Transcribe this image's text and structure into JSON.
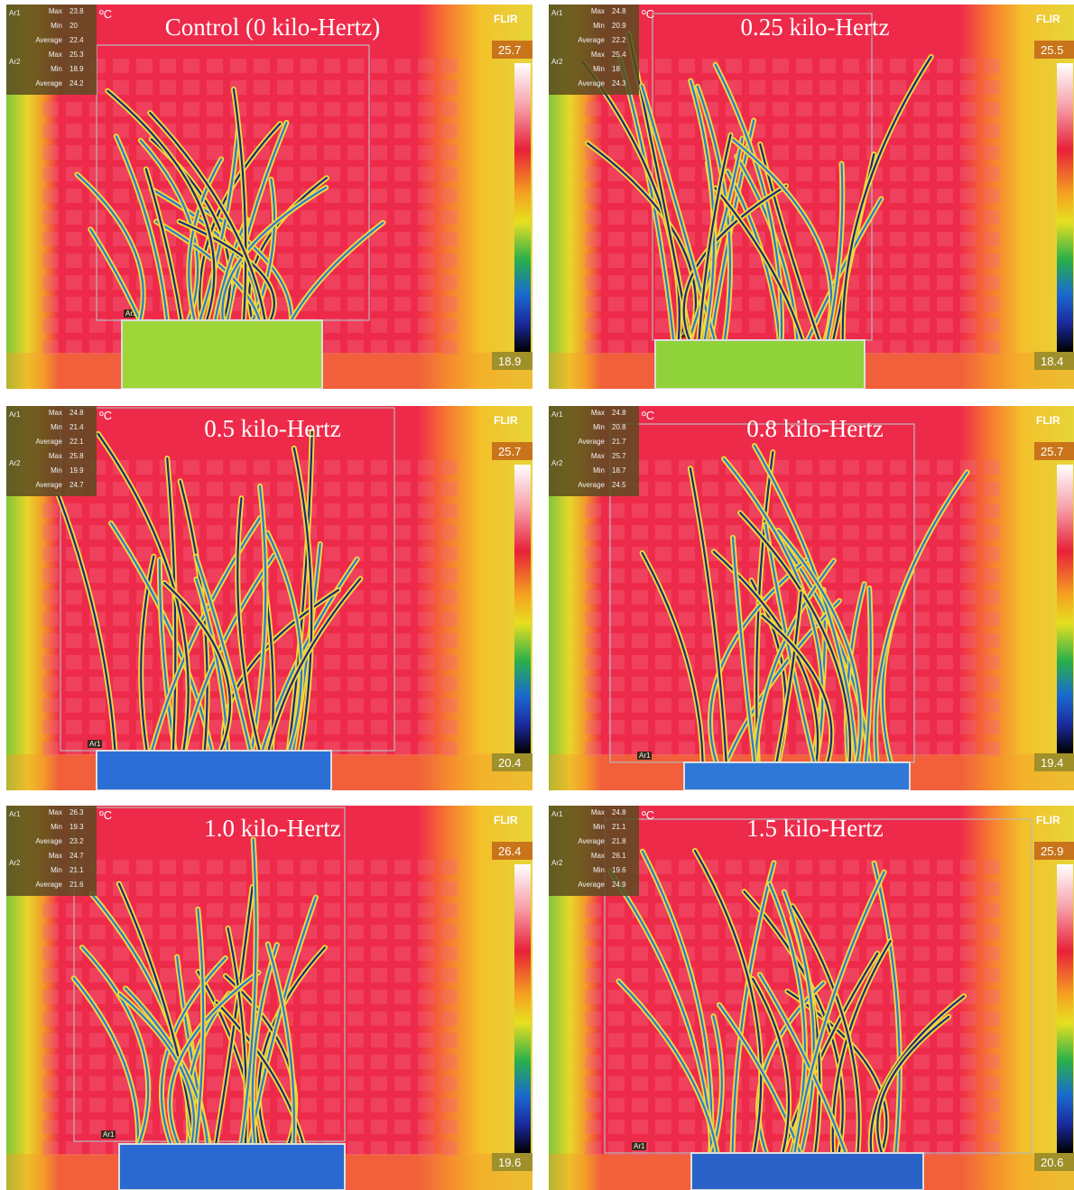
{
  "panels": [
    {
      "title": "Control (0 kilo-Hertz)",
      "unit": "ºC",
      "brand": "FLIR",
      "scale_max": 25.7,
      "scale_min": 18.9,
      "roi_label": "Ar1",
      "areas": [
        {
          "name": "Ar1",
          "readings": [
            {
              "label": "Max",
              "value": 23.8
            },
            {
              "label": "Min",
              "value": 20.0
            },
            {
              "label": "Average",
              "value": 22.4
            }
          ]
        },
        {
          "name": "Ar2",
          "readings": [
            {
              "label": "Max",
              "value": 25.3
            },
            {
              "label": "Min",
              "value": 18.9
            },
            {
              "label": "Average",
              "value": 24.2
            }
          ]
        }
      ]
    },
    {
      "title": "0.25 kilo-Hertz",
      "unit": "ºC",
      "brand": "FLIR",
      "scale_max": 25.5,
      "scale_min": 18.4,
      "roi_label": "Ar1",
      "areas": [
        {
          "name": "Ar1",
          "readings": [
            {
              "label": "Max",
              "value": 24.8
            },
            {
              "label": "Min",
              "value": 20.9
            },
            {
              "label": "Average",
              "value": 22.2
            }
          ]
        },
        {
          "name": "Ar2",
          "readings": [
            {
              "label": "Max",
              "value": 25.4
            },
            {
              "label": "Min",
              "value": 18.0
            },
            {
              "label": "Average",
              "value": 24.3
            }
          ]
        }
      ]
    },
    {
      "title": "0.5 kilo-Hertz",
      "unit": "ºC",
      "brand": "FLIR",
      "scale_max": 25.7,
      "scale_min": 20.4,
      "roi_label": "Ar1",
      "areas": [
        {
          "name": "Ar1",
          "readings": [
            {
              "label": "Max",
              "value": 24.8
            },
            {
              "label": "Min",
              "value": 21.4
            },
            {
              "label": "Average",
              "value": 22.1
            }
          ]
        },
        {
          "name": "Ar2",
          "readings": [
            {
              "label": "Max",
              "value": 25.8
            },
            {
              "label": "Min",
              "value": 19.9
            },
            {
              "label": "Average",
              "value": 24.7
            }
          ]
        }
      ]
    },
    {
      "title": "0.8 kilo-Hertz",
      "unit": "ºC",
      "brand": "FLIR",
      "scale_max": 25.7,
      "scale_min": 19.4,
      "roi_label": "Ar1",
      "areas": [
        {
          "name": "Ar1",
          "readings": [
            {
              "label": "Max",
              "value": 24.8
            },
            {
              "label": "Min",
              "value": 20.8
            },
            {
              "label": "Average",
              "value": 21.7
            }
          ]
        },
        {
          "name": "Ar2",
          "readings": [
            {
              "label": "Max",
              "value": 25.7
            },
            {
              "label": "Min",
              "value": 18.7
            },
            {
              "label": "Average",
              "value": 24.5
            }
          ]
        }
      ]
    },
    {
      "title": "1.0 kilo-Hertz",
      "unit": "ºC",
      "brand": "FLIR",
      "scale_max": 26.4,
      "scale_min": 19.6,
      "roi_label": "Ar1",
      "areas": [
        {
          "name": "Ar1",
          "readings": [
            {
              "label": "Max",
              "value": 26.3
            },
            {
              "label": "Min",
              "value": 19.3
            },
            {
              "label": "Average",
              "value": 23.2
            }
          ]
        },
        {
          "name": "Ar2",
          "readings": [
            {
              "label": "Max",
              "value": 24.7
            },
            {
              "label": "Min",
              "value": 21.1
            },
            {
              "label": "Average",
              "value": 21.6
            }
          ]
        }
      ]
    },
    {
      "title": "1.5 kilo-Hertz",
      "unit": "ºC",
      "brand": "FLIR",
      "scale_max": 25.9,
      "scale_min": 20.6,
      "roi_label": "Ar1",
      "areas": [
        {
          "name": "Ar1",
          "readings": [
            {
              "label": "Max",
              "value": 24.8
            },
            {
              "label": "Min",
              "value": 21.1
            },
            {
              "label": "Average",
              "value": 21.8
            }
          ]
        },
        {
          "name": "Ar2",
          "readings": [
            {
              "label": "Max",
              "value": 26.1
            },
            {
              "label": "Min",
              "value": 19.6
            },
            {
              "label": "Average",
              "value": 24.9
            }
          ]
        }
      ]
    }
  ]
}
